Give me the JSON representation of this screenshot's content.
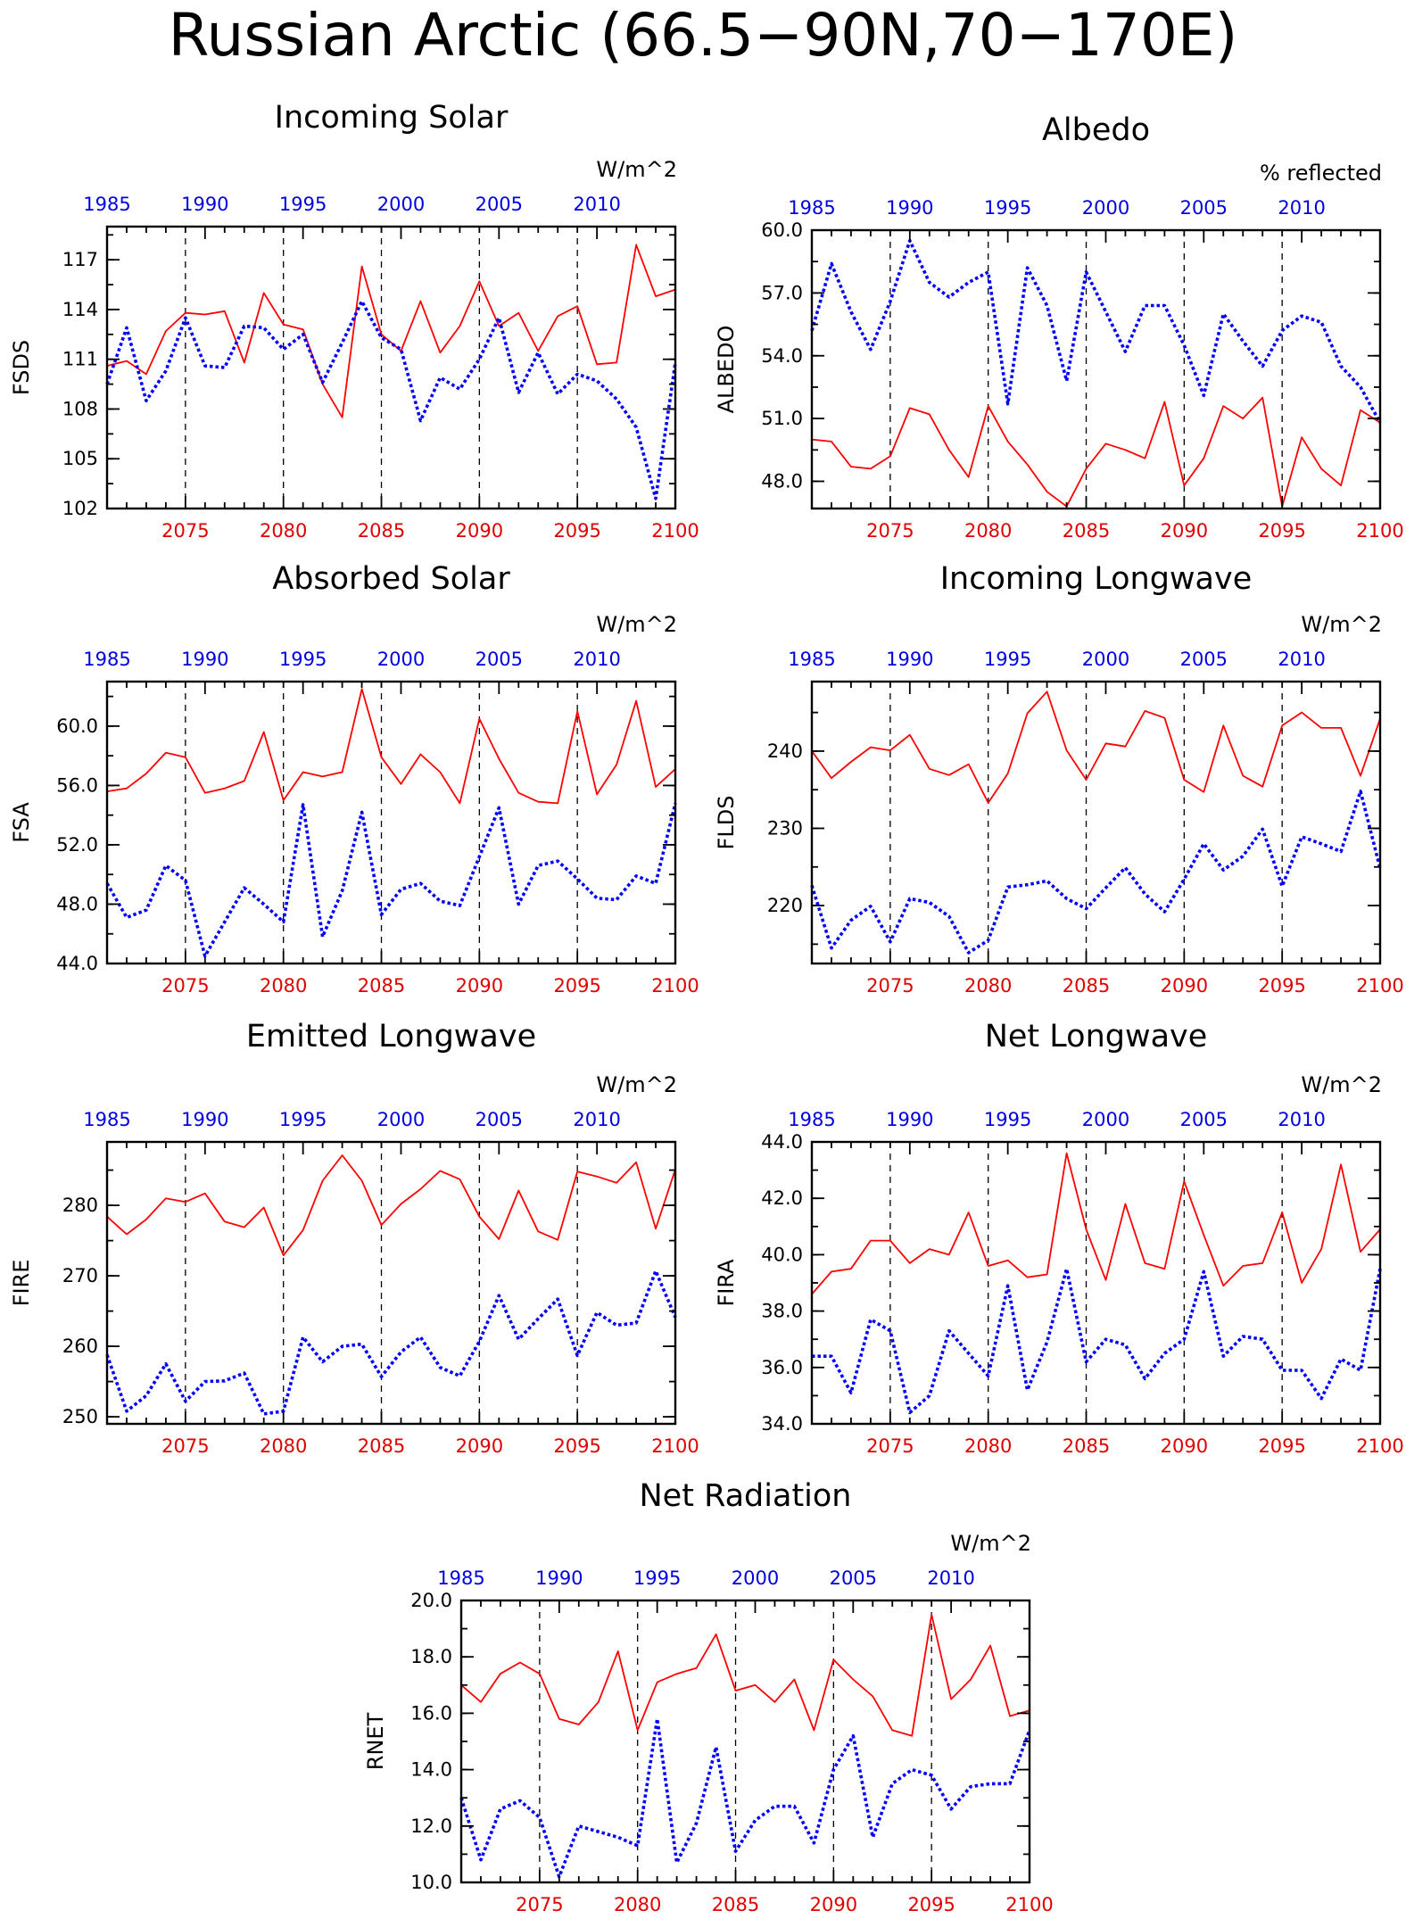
{
  "title": "Russian Arctic (66.5−90N,70−170E)",
  "colors": {
    "series_a": "#ff0000",
    "series_b": "#0000ff",
    "axis_bottom": "#e00000",
    "axis_top": "#0000e0"
  },
  "chart_data": [
    {
      "id": "fsds",
      "type": "line",
      "title": "Incoming Solar",
      "ylabel": "FSDS",
      "units": "W/m^2",
      "xlim": [
        2071,
        2100
      ],
      "ylim": [
        102,
        119
      ],
      "x_bottom_ticks": [
        2075,
        2080,
        2085,
        2090,
        2095,
        2100
      ],
      "x_top_ticks": [
        "1985",
        "1990",
        "1995",
        "2000",
        "2005",
        "2010"
      ],
      "y_ticks": [
        "102",
        "105",
        "108",
        "111",
        "114",
        "117"
      ],
      "x": [
        2071,
        2072,
        2073,
        2074,
        2075,
        2076,
        2077,
        2078,
        2079,
        2080,
        2081,
        2082,
        2083,
        2084,
        2085,
        2086,
        2087,
        2088,
        2089,
        2090,
        2091,
        2092,
        2093,
        2094,
        2095,
        2096,
        2097,
        2098,
        2099,
        2100
      ],
      "series": [
        {
          "style": "solid",
          "values": [
            110.6,
            110.9,
            110.1,
            112.7,
            113.8,
            113.7,
            113.9,
            110.8,
            115.0,
            113.1,
            112.8,
            109.5,
            107.5,
            116.6,
            112.5,
            111.5,
            114.5,
            111.4,
            113.0,
            115.7,
            113.0,
            113.8,
            111.5,
            113.6,
            114.2,
            110.7,
            110.8,
            117.9,
            114.8,
            115.2
          ]
        },
        {
          "style": "dotted",
          "values": [
            109.5,
            112.9,
            108.5,
            110.3,
            113.5,
            110.6,
            110.5,
            113.0,
            112.9,
            111.6,
            112.5,
            109.6,
            112.0,
            114.5,
            112.3,
            111.6,
            107.3,
            109.9,
            109.2,
            111.0,
            113.5,
            109.0,
            111.4,
            108.9,
            110.1,
            109.7,
            108.6,
            106.9,
            102.6,
            110.8
          ]
        }
      ]
    },
    {
      "id": "albedo",
      "type": "line",
      "title": "Albedo",
      "ylabel": "ALBEDO",
      "units": "% reflected",
      "xlim": [
        2071,
        2100
      ],
      "ylim": [
        46.7,
        60.0
      ],
      "x_bottom_ticks": [
        2075,
        2080,
        2085,
        2090,
        2095,
        2100
      ],
      "x_top_ticks": [
        "1985",
        "1990",
        "1995",
        "2000",
        "2005",
        "2010"
      ],
      "y_ticks": [
        "48.0",
        "51.0",
        "54.0",
        "57.0",
        "60.0"
      ],
      "x": [
        2071,
        2072,
        2073,
        2074,
        2075,
        2076,
        2077,
        2078,
        2079,
        2080,
        2081,
        2082,
        2083,
        2084,
        2085,
        2086,
        2087,
        2088,
        2089,
        2090,
        2091,
        2092,
        2093,
        2094,
        2095,
        2096,
        2097,
        2098,
        2099,
        2100
      ],
      "series": [
        {
          "style": "solid",
          "values": [
            50.0,
            49.9,
            48.7,
            48.6,
            49.2,
            51.5,
            51.2,
            49.5,
            48.2,
            51.6,
            49.9,
            48.8,
            47.5,
            46.8,
            48.6,
            49.8,
            49.5,
            49.1,
            51.8,
            47.8,
            49.1,
            51.6,
            51.0,
            52.0,
            46.8,
            50.1,
            48.6,
            47.8,
            51.4,
            50.8
          ]
        },
        {
          "style": "dotted",
          "values": [
            55.2,
            58.4,
            56.1,
            54.3,
            56.6,
            59.5,
            57.5,
            56.8,
            57.5,
            58.0,
            51.7,
            58.2,
            56.4,
            52.8,
            58.0,
            56.1,
            54.2,
            56.4,
            56.4,
            54.5,
            52.1,
            56.0,
            54.7,
            53.5,
            55.2,
            55.9,
            55.6,
            53.5,
            52.5,
            50.8
          ]
        }
      ]
    },
    {
      "id": "fsa",
      "type": "line",
      "title": "Absorbed Solar",
      "ylabel": "FSA",
      "units": "W/m^2",
      "xlim": [
        2071,
        2100
      ],
      "ylim": [
        44.0,
        63.0
      ],
      "x_bottom_ticks": [
        2075,
        2080,
        2085,
        2090,
        2095,
        2100
      ],
      "x_top_ticks": [
        "1985",
        "1990",
        "1995",
        "2000",
        "2005",
        "2010"
      ],
      "y_ticks": [
        "44.0",
        "48.0",
        "52.0",
        "56.0",
        "60.0"
      ],
      "x": [
        2071,
        2072,
        2073,
        2074,
        2075,
        2076,
        2077,
        2078,
        2079,
        2080,
        2081,
        2082,
        2083,
        2084,
        2085,
        2086,
        2087,
        2088,
        2089,
        2090,
        2091,
        2092,
        2093,
        2094,
        2095,
        2096,
        2097,
        2098,
        2099,
        2100
      ],
      "series": [
        {
          "style": "solid",
          "values": [
            55.6,
            55.8,
            56.8,
            58.2,
            57.9,
            55.5,
            55.8,
            56.3,
            59.6,
            55.0,
            56.9,
            56.6,
            56.9,
            62.5,
            57.9,
            56.1,
            58.1,
            56.9,
            54.8,
            60.5,
            57.8,
            55.5,
            54.9,
            54.8,
            61.0,
            55.4,
            57.4,
            61.7,
            55.9,
            57.1
          ]
        },
        {
          "style": "dotted",
          "values": [
            49.4,
            47.1,
            47.6,
            50.6,
            49.6,
            44.5,
            46.8,
            49.1,
            48.0,
            46.8,
            54.7,
            45.8,
            48.9,
            54.2,
            47.3,
            49.0,
            49.4,
            48.2,
            47.9,
            51.2,
            54.5,
            48.0,
            50.6,
            50.9,
            49.7,
            48.4,
            48.3,
            49.9,
            49.4,
            54.8
          ]
        }
      ]
    },
    {
      "id": "flds",
      "type": "line",
      "title": "Incoming Longwave",
      "ylabel": "FLDS",
      "units": "W/m^2",
      "xlim": [
        2071,
        2100
      ],
      "ylim": [
        212.5,
        249.0
      ],
      "x_bottom_ticks": [
        2075,
        2080,
        2085,
        2090,
        2095,
        2100
      ],
      "x_top_ticks": [
        "1985",
        "1990",
        "1995",
        "2000",
        "2005",
        "2010"
      ],
      "y_ticks": [
        "220",
        "230",
        "240"
      ],
      "x": [
        2071,
        2072,
        2073,
        2074,
        2075,
        2076,
        2077,
        2078,
        2079,
        2080,
        2081,
        2082,
        2083,
        2084,
        2085,
        2086,
        2087,
        2088,
        2089,
        2090,
        2091,
        2092,
        2093,
        2094,
        2095,
        2096,
        2097,
        2098,
        2099,
        2100
      ],
      "series": [
        {
          "style": "solid",
          "values": [
            240.0,
            236.5,
            238.6,
            240.5,
            240.1,
            242.1,
            237.7,
            236.9,
            238.3,
            233.3,
            237.1,
            244.9,
            247.7,
            240.1,
            236.3,
            241.0,
            240.6,
            245.2,
            244.3,
            236.3,
            234.7,
            243.3,
            236.8,
            235.4,
            243.3,
            245.0,
            243.0,
            243.0,
            236.8,
            244.2
          ]
        },
        {
          "style": "dotted",
          "values": [
            222.6,
            214.5,
            218.1,
            219.9,
            215.3,
            220.9,
            220.4,
            218.6,
            213.9,
            215.5,
            222.4,
            222.7,
            223.2,
            220.9,
            219.6,
            222.3,
            224.9,
            221.5,
            219.2,
            223.4,
            228.0,
            224.6,
            226.4,
            229.9,
            222.5,
            228.9,
            228.0,
            227.0,
            234.8,
            224.8
          ]
        }
      ]
    },
    {
      "id": "fire",
      "type": "line",
      "title": "Emitted Longwave",
      "ylabel": "FIRE",
      "units": "W/m^2",
      "xlim": [
        2071,
        2100
      ],
      "ylim": [
        249.0,
        289.0
      ],
      "x_bottom_ticks": [
        2075,
        2080,
        2085,
        2090,
        2095,
        2100
      ],
      "x_top_ticks": [
        "1985",
        "1990",
        "1995",
        "2000",
        "2005",
        "2010"
      ],
      "y_ticks": [
        "250",
        "260",
        "270",
        "280"
      ],
      "x": [
        2071,
        2072,
        2073,
        2074,
        2075,
        2076,
        2077,
        2078,
        2079,
        2080,
        2081,
        2082,
        2083,
        2084,
        2085,
        2086,
        2087,
        2088,
        2089,
        2090,
        2091,
        2092,
        2093,
        2094,
        2095,
        2096,
        2097,
        2098,
        2099,
        2100
      ],
      "series": [
        {
          "style": "solid",
          "values": [
            278.4,
            275.9,
            278.0,
            281.0,
            280.5,
            281.7,
            277.7,
            276.9,
            279.7,
            272.9,
            276.5,
            283.5,
            287.1,
            283.5,
            277.2,
            280.2,
            282.3,
            284.9,
            283.7,
            278.4,
            275.2,
            282.1,
            276.3,
            275.1,
            284.8,
            284.1,
            283.2,
            286.1,
            276.7,
            285.1
          ]
        },
        {
          "style": "dotted",
          "values": [
            258.8,
            250.8,
            253.0,
            257.5,
            252.2,
            255.0,
            255.1,
            256.2,
            250.4,
            250.8,
            261.3,
            257.8,
            260.0,
            260.3,
            255.7,
            259.2,
            261.3,
            257.0,
            255.8,
            260.7,
            267.2,
            261.0,
            263.9,
            266.7,
            258.7,
            264.8,
            263.0,
            263.3,
            270.7,
            264.1
          ]
        }
      ]
    },
    {
      "id": "fira",
      "type": "line",
      "title": "Net Longwave",
      "ylabel": "FIRA",
      "units": "W/m^2",
      "xlim": [
        2071,
        2100
      ],
      "ylim": [
        34.0,
        44.0
      ],
      "x_bottom_ticks": [
        2075,
        2080,
        2085,
        2090,
        2095,
        2100
      ],
      "x_top_ticks": [
        "1985",
        "1990",
        "1995",
        "2000",
        "2005",
        "2010"
      ],
      "y_ticks": [
        "34.0",
        "36.0",
        "38.0",
        "40.0",
        "42.0",
        "44.0"
      ],
      "x": [
        2071,
        2072,
        2073,
        2074,
        2075,
        2076,
        2077,
        2078,
        2079,
        2080,
        2081,
        2082,
        2083,
        2084,
        2085,
        2086,
        2087,
        2088,
        2089,
        2090,
        2091,
        2092,
        2093,
        2094,
        2095,
        2096,
        2097,
        2098,
        2099,
        2100
      ],
      "series": [
        {
          "style": "solid",
          "values": [
            38.6,
            39.4,
            39.5,
            40.5,
            40.5,
            39.7,
            40.2,
            40.0,
            41.5,
            39.6,
            39.8,
            39.2,
            39.3,
            43.6,
            40.9,
            39.1,
            41.8,
            39.7,
            39.5,
            42.6,
            40.7,
            38.9,
            39.6,
            39.7,
            41.5,
            39.0,
            40.2,
            43.2,
            40.1,
            40.9
          ]
        },
        {
          "style": "dotted",
          "values": [
            36.4,
            36.4,
            35.1,
            37.7,
            37.3,
            34.4,
            35.0,
            37.3,
            36.5,
            35.7,
            38.9,
            35.2,
            36.9,
            39.5,
            36.2,
            37.0,
            36.8,
            35.6,
            36.5,
            37.0,
            39.4,
            36.4,
            37.1,
            37.0,
            35.9,
            35.9,
            34.9,
            36.3,
            35.9,
            39.5
          ]
        }
      ]
    },
    {
      "id": "rnet",
      "type": "line",
      "title": "Net Radiation",
      "ylabel": "RNET",
      "units": "W/m^2",
      "xlim": [
        2071,
        2100
      ],
      "ylim": [
        10.0,
        20.0
      ],
      "x_bottom_ticks": [
        2075,
        2080,
        2085,
        2090,
        2095,
        2100
      ],
      "x_top_ticks": [
        "1985",
        "1990",
        "1995",
        "2000",
        "2005",
        "2010"
      ],
      "y_ticks": [
        "10.0",
        "12.0",
        "14.0",
        "16.0",
        "18.0",
        "20.0"
      ],
      "x": [
        2071,
        2072,
        2073,
        2074,
        2075,
        2076,
        2077,
        2078,
        2079,
        2080,
        2081,
        2082,
        2083,
        2084,
        2085,
        2086,
        2087,
        2088,
        2089,
        2090,
        2091,
        2092,
        2093,
        2094,
        2095,
        2096,
        2097,
        2098,
        2099,
        2100
      ],
      "series": [
        {
          "style": "solid",
          "values": [
            17.0,
            16.4,
            17.4,
            17.8,
            17.4,
            15.8,
            15.6,
            16.4,
            18.2,
            15.4,
            17.1,
            17.4,
            17.6,
            18.8,
            16.8,
            17.0,
            16.4,
            17.2,
            15.4,
            17.9,
            17.2,
            16.6,
            15.4,
            15.2,
            19.5,
            16.5,
            17.2,
            18.4,
            15.9,
            16.1
          ]
        },
        {
          "style": "dotted",
          "values": [
            13.0,
            10.8,
            12.6,
            12.9,
            12.3,
            10.2,
            12.0,
            11.8,
            11.6,
            11.3,
            15.8,
            10.7,
            12.1,
            14.8,
            11.1,
            12.2,
            12.7,
            12.7,
            11.4,
            14.0,
            15.2,
            11.6,
            13.5,
            14.0,
            13.8,
            12.6,
            13.4,
            13.5,
            13.5,
            15.4
          ]
        }
      ]
    }
  ]
}
